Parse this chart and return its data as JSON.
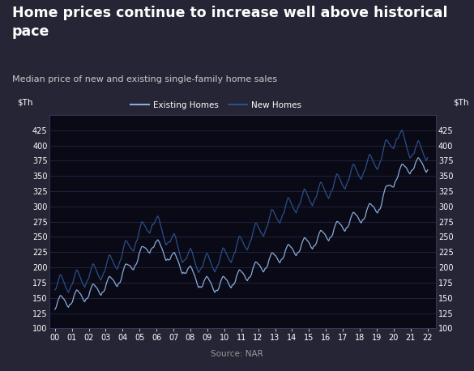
{
  "title": "Home prices continue to increase well above historical\npace",
  "subtitle": "Median price of new and existing single-family home sales",
  "source": "Source: NAR",
  "ylabel_left": "$Th",
  "ylabel_right": "$Th",
  "ylim": [
    100,
    450
  ],
  "yticks": [
    100,
    125,
    150,
    175,
    200,
    225,
    250,
    275,
    300,
    325,
    350,
    375,
    400,
    425
  ],
  "xtick_labels": [
    "00",
    "01",
    "02",
    "03",
    "04",
    "05",
    "06",
    "07",
    "08",
    "09",
    "10",
    "11",
    "12",
    "13",
    "14",
    "15",
    "16",
    "17",
    "18",
    "19",
    "20",
    "21",
    "22"
  ],
  "bg_outer": "#252535",
  "bg_title": "#252535",
  "bg_chart": "#0a0a16",
  "text_color": "#ffffff",
  "subtitle_color": "#cccccc",
  "source_color": "#999999",
  "existing_color": "#8aabdc",
  "new_color": "#2a4f8a",
  "legend_existing": "Existing Homes",
  "legend_new": "New Homes",
  "n_per_year": 12,
  "existing_annual_base": [
    139,
    148,
    157,
    168,
    183,
    213,
    240,
    220,
    198,
    175,
    170,
    180,
    192,
    207,
    222,
    233,
    244,
    258,
    274,
    287,
    304,
    352,
    368
  ],
  "new_annual_base": [
    168,
    175,
    184,
    196,
    215,
    247,
    276,
    247,
    218,
    204,
    208,
    226,
    247,
    270,
    291,
    307,
    318,
    330,
    346,
    362,
    378,
    416,
    390
  ],
  "existing_seasonal": [
    -8,
    -5,
    3,
    8,
    12,
    10,
    6,
    3,
    -2,
    -8,
    -12,
    -8
  ],
  "new_seasonal": [
    -5,
    -3,
    5,
    12,
    18,
    15,
    8,
    2,
    -5,
    -10,
    -15,
    -10
  ]
}
